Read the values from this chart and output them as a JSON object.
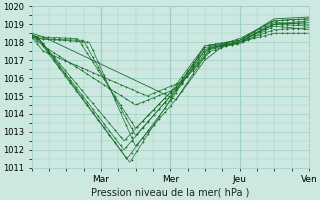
{
  "title": "",
  "xlabel": "Pression niveau de la mer( hPa )",
  "ylim": [
    1011,
    1020
  ],
  "xlim": [
    0,
    96
  ],
  "yticks": [
    1011,
    1012,
    1013,
    1014,
    1015,
    1016,
    1017,
    1018,
    1019,
    1020
  ],
  "xtick_positions": [
    24,
    48,
    72,
    96
  ],
  "xtick_labels": [
    "Mar",
    "Mer",
    "Jeu",
    "Ven"
  ],
  "bg_color": "#cce8e0",
  "grid_color": "#9ecfc4",
  "line_color": "#1a6e2a"
}
